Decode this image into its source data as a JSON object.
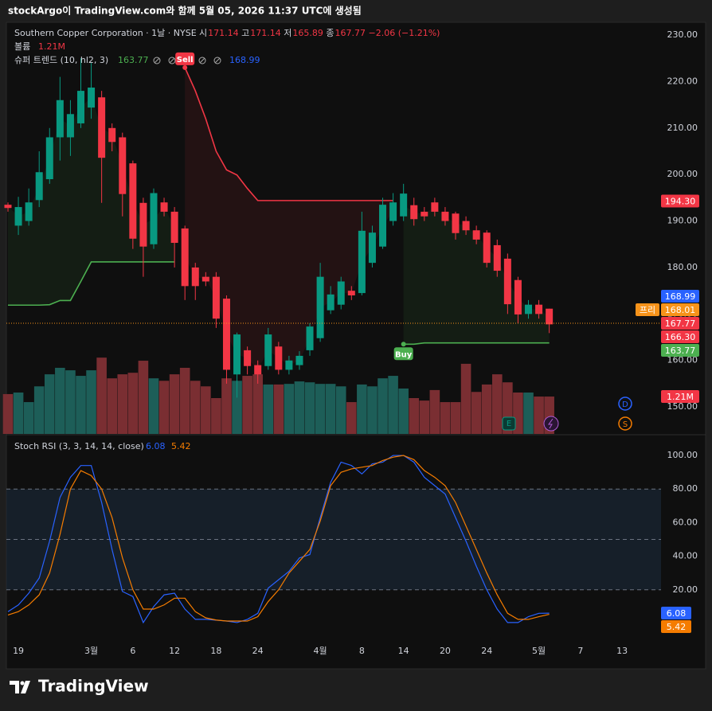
{
  "header": "stockArgo이 TradingView.com와 함께 5월 05, 2026 11:37 UTC에 생성됨",
  "chart_data": {
    "type": "candlestick",
    "symbol_line": "Southern Copper Corporation · 1날 · NYSE",
    "ohlc_legend": [
      {
        "label": "시",
        "value": 171.14
      },
      {
        "label": "고",
        "value": 171.14
      },
      {
        "label": "저",
        "value": 165.89
      },
      {
        "label": "종",
        "value": 167.77
      }
    ],
    "change": "−2.06 (−1.21%)",
    "volume_legend": {
      "label": "볼륨",
      "value": "1.21M"
    },
    "supertrend_legend": {
      "label": "슈퍼 트렌드 (10, hl2, 3)",
      "up": 163.77,
      "down": 168.99
    },
    "open": [
      193.5,
      189,
      190,
      194.5,
      199,
      208,
      208,
      211,
      214.4,
      216.6,
      210,
      208,
      202.4,
      193.9,
      185,
      194,
      192,
      188.4,
      180,
      178,
      178,
      173.3,
      157,
      162.2,
      159,
      158.8,
      163,
      158,
      159,
      162.2,
      164.8,
      170.8,
      172,
      175,
      174.5,
      181,
      184.5,
      190,
      191,
      193.4,
      192,
      194,
      192,
      191.6,
      190,
      188,
      187.5,
      184.8,
      181.9,
      177.3,
      170,
      172,
      171.14
    ],
    "high": [
      194,
      195.2,
      197,
      205,
      210,
      221,
      216,
      225,
      224,
      218,
      211,
      209,
      203,
      195,
      197,
      195,
      193,
      189,
      181,
      179,
      179,
      174,
      166,
      163,
      160,
      167,
      164,
      161,
      162,
      168,
      181,
      176,
      178,
      176,
      192,
      189,
      195,
      196,
      198,
      195,
      193,
      195,
      193,
      192,
      191,
      189,
      188,
      186,
      183,
      178,
      173,
      173,
      171.14
    ],
    "low": [
      192,
      187,
      189,
      193,
      198,
      203,
      204,
      210,
      212,
      193.9,
      205,
      191,
      184,
      178,
      184,
      191,
      180,
      173,
      173,
      176,
      167,
      155,
      152,
      157,
      155,
      158,
      157,
      157,
      158,
      161,
      164,
      170,
      171,
      173,
      174,
      180,
      184,
      189,
      190,
      189,
      190,
      191,
      189,
      186,
      187,
      185,
      180,
      178,
      170,
      168,
      169,
      169,
      165.89
    ],
    "close": [
      192.8,
      193,
      194,
      200.5,
      208,
      216,
      213,
      218,
      218.7,
      203.6,
      207,
      195.8,
      186.2,
      184.5,
      196,
      192,
      185.3,
      176,
      176,
      177,
      169,
      158,
      165.6,
      158.8,
      157,
      165.6,
      158,
      160,
      161,
      167.3,
      178,
      174.2,
      177,
      174,
      187.9,
      187.5,
      193.5,
      194,
      195.9,
      190.4,
      191,
      192,
      190,
      187.4,
      188,
      186,
      181,
      179.3,
      172.1,
      169.9,
      172,
      170,
      167.77
    ],
    "volume": [
      1.29,
      1.34,
      1.03,
      1.54,
      1.93,
      2.14,
      2.06,
      1.88,
      2.06,
      2.47,
      1.8,
      1.93,
      1.98,
      2.37,
      1.8,
      1.72,
      1.93,
      2.14,
      1.72,
      1.54,
      1.16,
      1.8,
      1.72,
      1.88,
      1.93,
      1.6,
      1.6,
      1.62,
      1.7,
      1.67,
      1.62,
      1.62,
      1.54,
      1.03,
      1.6,
      1.54,
      1.8,
      1.88,
      1.47,
      1.16,
      1.08,
      1.42,
      1.03,
      1.03,
      2.27,
      1.36,
      1.6,
      1.93,
      1.67,
      1.34,
      1.34,
      1.21,
      1.21
    ],
    "up_color": "#089981",
    "down_color": "#f23645",
    "supertrend_up": {
      "color": "#4caf50",
      "values": [
        171.9,
        171.9,
        171.9,
        171.9,
        172,
        172.9,
        172.9,
        177,
        181.2,
        181.2,
        181.2,
        181.2,
        181.2,
        181.2,
        181.2,
        181.2,
        181.2,
        null,
        null,
        null,
        null,
        null,
        null,
        null,
        null,
        null,
        null,
        null,
        null,
        null,
        null,
        null,
        null,
        null,
        null,
        null,
        null,
        null,
        163.5,
        163.5,
        163.77,
        163.77,
        163.77,
        163.77,
        163.77,
        163.77,
        163.77,
        163.77,
        163.77,
        163.77,
        163.77,
        163.77,
        163.77
      ]
    },
    "supertrend_down": {
      "color": "#f23645",
      "values": [
        null,
        null,
        null,
        null,
        null,
        null,
        null,
        null,
        null,
        null,
        null,
        null,
        null,
        null,
        null,
        null,
        null,
        223,
        218,
        212,
        205,
        201,
        199.9,
        197,
        194.4,
        194.4,
        194.4,
        194.4,
        194.4,
        194.4,
        194.4,
        194.4,
        194.4,
        194.4,
        194.4,
        194.4,
        194.4,
        194.4,
        null,
        null,
        null,
        null,
        null,
        null,
        null,
        null,
        null,
        null,
        null,
        null,
        null,
        null,
        null
      ]
    },
    "signals": [
      {
        "label": "Sell",
        "index": 17
      },
      {
        "label": "Buy",
        "index": 38
      }
    ],
    "ylim": [
      144.2,
      232.4
    ],
    "yticks": [
      {
        "value": 230,
        "label": "230.00"
      },
      {
        "value": 220,
        "label": "220.00"
      },
      {
        "value": 210,
        "label": "210.00"
      },
      {
        "value": 200,
        "label": "200.00"
      },
      {
        "value": 190,
        "label": "190.00"
      },
      {
        "value": 180,
        "label": "180.00"
      },
      {
        "value": 170,
        "label": "170.00"
      },
      {
        "value": 160,
        "label": "160.00"
      },
      {
        "value": 150,
        "label": "150.00"
      }
    ],
    "price_labels": [
      {
        "value": 194.3,
        "label": "194.30",
        "color": "#f23645"
      },
      {
        "value": 168.99,
        "label": "168.99",
        "color": "#2962ff"
      },
      {
        "value": 168.01,
        "label": "168.01",
        "prefix": "프리",
        "color": "#f7931a"
      },
      {
        "value": 167.77,
        "label": "167.77",
        "color": "#f23645"
      },
      {
        "value": 166.3,
        "label": "166.30",
        "color": "#f23645"
      },
      {
        "value": 163.77,
        "label": "163.77",
        "color": "#4caf50"
      }
    ],
    "volume_label": {
      "value": 1.21,
      "label": "1.21M",
      "color": "#f23645"
    },
    "x_labels": [
      {
        "label": "19",
        "index": 1
      },
      {
        "label": "3월",
        "index": 8
      },
      {
        "label": "6",
        "index": 12
      },
      {
        "label": "12",
        "index": 16
      },
      {
        "label": "18",
        "index": 20
      },
      {
        "label": "24",
        "index": 24
      },
      {
        "label": "4월",
        "index": 30
      },
      {
        "label": "8",
        "index": 34
      },
      {
        "label": "14",
        "index": 38
      },
      {
        "label": "20",
        "index": 42
      },
      {
        "label": "24",
        "index": 46
      },
      {
        "label": "5월",
        "index": 51
      },
      {
        "label": "7",
        "index": 55
      },
      {
        "label": "13",
        "index": 59
      }
    ]
  },
  "stoch": {
    "type": "line",
    "title": "Stoch RSI (3, 3, 14, 14, close)",
    "series": [
      {
        "color": "#2962ff",
        "values": [
          7,
          11,
          18,
          27,
          49,
          75,
          87,
          94,
          94,
          72,
          44,
          19,
          16,
          0.5,
          10,
          17,
          18,
          8.5,
          2.4,
          2.4,
          1.9,
          1.4,
          0.5,
          2.4,
          6,
          21,
          26,
          31,
          39,
          41,
          63,
          84,
          96,
          94,
          89,
          95,
          96,
          100,
          100,
          96,
          87,
          82,
          77,
          63,
          49,
          34,
          20,
          8.5,
          0.5,
          0.5,
          4,
          6,
          6.08
        ]
      },
      {
        "color": "#f57c00",
        "values": [
          5,
          7,
          11,
          17,
          30,
          53,
          80,
          91,
          88,
          80,
          63,
          39,
          20,
          8.5,
          8.5,
          11,
          15,
          15,
          7,
          3.3,
          2,
          1.4,
          1.4,
          1.4,
          4,
          13,
          20,
          30,
          37,
          44,
          61,
          82,
          90,
          92,
          93,
          94,
          97,
          99,
          100,
          97.5,
          91,
          87,
          82,
          72,
          58,
          44,
          30,
          17,
          6,
          2.4,
          2.4,
          4,
          5.42
        ]
      }
    ],
    "ylim": [
      -9.5,
      111.4
    ],
    "yticks": [
      {
        "value": 100,
        "label": "100.00"
      },
      {
        "value": 80,
        "label": "80.00"
      },
      {
        "value": 60,
        "label": "60.00"
      },
      {
        "value": 40,
        "label": "40.00"
      },
      {
        "value": 20,
        "label": "20.00"
      }
    ],
    "bands": [
      80,
      50,
      20
    ]
  },
  "footer": "TradingView"
}
